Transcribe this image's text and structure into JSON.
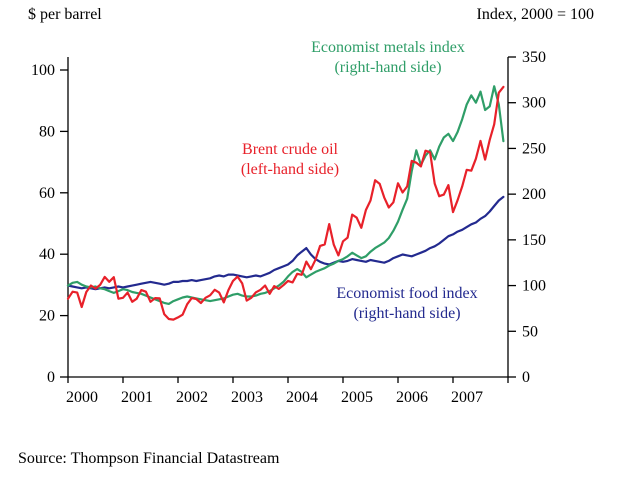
{
  "header": {
    "left_label": "$ per barrel",
    "right_label": "Index, 2000 = 100"
  },
  "source": "Source: Thompson Financial Datastream",
  "chart_data": {
    "type": "line",
    "x_axis": {
      "min": 2000,
      "max": 2008,
      "tick_years": [
        2000,
        2001,
        2002,
        2003,
        2004,
        2005,
        2006,
        2007
      ],
      "tick_labels": [
        "2000",
        "2001",
        "2002",
        "2003",
        "2004",
        "2005",
        "2006",
        "2007"
      ]
    },
    "left_axis": {
      "label": "$ per barrel",
      "min": 0,
      "max": 100,
      "ticks": [
        0,
        20,
        40,
        60,
        80,
        100
      ]
    },
    "right_axis": {
      "label": "Index, 2000 = 100",
      "min": 0,
      "max": 350,
      "ticks": [
        0,
        50,
        100,
        150,
        200,
        250,
        300,
        350
      ]
    },
    "x_start_year": 2000,
    "x_step_years": 0.0833333,
    "series": [
      {
        "name": "Economist food index",
        "axis": "right",
        "color": "#232a8f",
        "values": [
          100,
          99,
          98,
          97,
          98,
          97,
          96,
          97,
          98,
          97,
          98,
          99,
          98,
          99,
          100,
          101,
          102,
          103,
          104,
          103,
          102,
          101,
          102,
          104,
          104,
          105,
          105,
          106,
          105,
          106,
          107,
          108,
          110,
          111,
          110,
          112,
          112,
          111,
          110,
          109,
          110,
          111,
          110,
          112,
          114,
          117,
          119,
          121,
          123,
          127,
          133,
          137,
          141,
          134,
          129,
          126,
          124,
          123,
          125,
          127,
          126,
          127,
          129,
          128,
          127,
          126,
          128,
          127,
          126,
          125,
          127,
          130,
          132,
          134,
          133,
          132,
          134,
          136,
          138,
          141,
          143,
          146,
          150,
          154,
          156,
          159,
          161,
          164,
          167,
          169,
          173,
          176,
          181,
          187,
          193,
          197
        ]
      },
      {
        "name": "Economist metals index",
        "axis": "right",
        "color": "#2f9e68",
        "values": [
          100,
          103,
          104,
          101,
          99,
          98,
          99,
          97,
          96,
          94,
          92,
          94,
          96,
          95,
          93,
          92,
          91,
          89,
          87,
          85,
          83,
          81,
          80,
          83,
          85,
          87,
          88,
          87,
          86,
          85,
          84,
          83,
          84,
          85,
          86,
          88,
          90,
          91,
          89,
          88,
          88,
          89,
          91,
          92,
          94,
          97,
          100,
          104,
          110,
          115,
          118,
          115,
          109,
          112,
          115,
          117,
          119,
          122,
          124,
          127,
          129,
          132,
          136,
          133,
          130,
          132,
          137,
          141,
          144,
          147,
          152,
          160,
          170,
          183,
          195,
          225,
          248,
          232,
          242,
          248,
          238,
          252,
          262,
          266,
          258,
          268,
          282,
          298,
          308,
          300,
          312,
          292,
          296,
          318,
          298,
          258
        ]
      },
      {
        "name": "Brent crude oil",
        "axis": "left",
        "color": "#e8212a",
        "values": [
          25.5,
          27.8,
          27.5,
          22.8,
          27.7,
          29.8,
          28.8,
          30.0,
          32.6,
          31.0,
          32.5,
          25.5,
          25.8,
          27.5,
          24.5,
          25.5,
          28.3,
          27.8,
          24.5,
          25.7,
          25.6,
          20.5,
          18.9,
          18.7,
          19.4,
          20.3,
          23.7,
          25.7,
          25.4,
          24.1,
          25.8,
          26.6,
          28.4,
          27.5,
          24.3,
          28.3,
          31.3,
          32.7,
          30.5,
          24.9,
          25.8,
          27.6,
          28.4,
          29.8,
          27.1,
          29.6,
          28.7,
          29.9,
          31.3,
          30.8,
          33.6,
          33.3,
          37.6,
          35.1,
          38.2,
          42.7,
          43.2,
          49.8,
          43.1,
          39.6,
          44.2,
          45.4,
          52.9,
          51.9,
          48.6,
          54.4,
          57.5,
          64.1,
          62.9,
          58.5,
          55.2,
          56.9,
          63.1,
          60.1,
          62.1,
          70.4,
          69.8,
          68.6,
          73.7,
          73.2,
          63.0,
          58.9,
          59.4,
          62.5,
          53.7,
          57.6,
          62.1,
          67.5,
          67.2,
          71.1,
          76.9,
          70.8,
          77.2,
          82.3,
          92.6,
          94.5
        ]
      }
    ],
    "annotations": {
      "metals": {
        "line1": "Economist metals index",
        "line2": "(right-hand side)"
      },
      "brent": {
        "line1": "Brent crude oil",
        "line2": "(left-hand side)"
      },
      "food": {
        "line1": "Economist food index",
        "line2": "(right-hand side)"
      }
    }
  }
}
